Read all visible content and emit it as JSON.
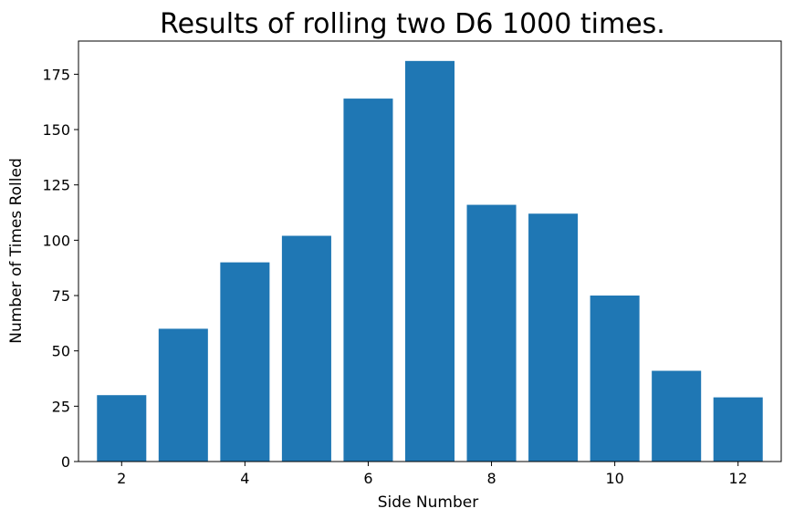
{
  "chart_data": {
    "type": "bar",
    "title": "Results of rolling two D6 1000 times.",
    "xlabel": "Side Number",
    "ylabel": "Number of Times Rolled",
    "categories": [
      2,
      3,
      4,
      5,
      6,
      7,
      8,
      9,
      10,
      11,
      12
    ],
    "values": [
      30,
      60,
      90,
      102,
      164,
      181,
      116,
      112,
      75,
      41,
      29
    ],
    "xlim": [
      1.3,
      12.7
    ],
    "ylim": [
      0,
      190
    ],
    "xticks": [
      2,
      4,
      6,
      8,
      10,
      12
    ],
    "yticks": [
      0,
      25,
      50,
      75,
      100,
      125,
      150,
      175
    ],
    "bar_color": "#1f77b4",
    "grid": false,
    "legend": "none"
  }
}
